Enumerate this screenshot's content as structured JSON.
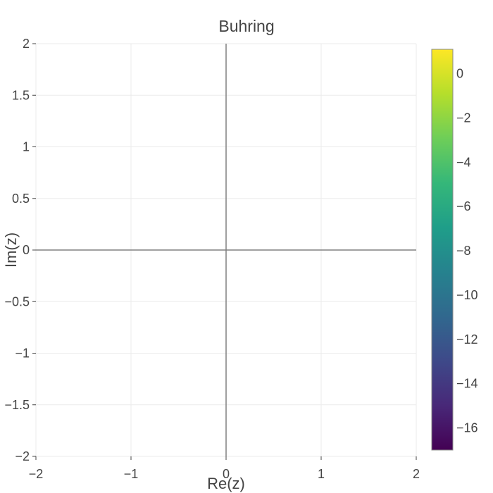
{
  "chart_data": {
    "type": "heatmap",
    "title": "Buhring",
    "xlabel": "Re(z)",
    "ylabel": "Im(z)",
    "xlim": [
      -2,
      2
    ],
    "ylim": [
      -2,
      2
    ],
    "x_ticks": [
      -2,
      -1,
      0,
      1,
      2
    ],
    "x_tick_labels": [
      "−2",
      "−1",
      "0",
      "1",
      "2"
    ],
    "y_ticks": [
      -2,
      -1.5,
      -1,
      -0.5,
      0,
      0.5,
      1,
      1.5,
      2
    ],
    "y_tick_labels": [
      "−2",
      "−1.5",
      "−1",
      "−0.5",
      "0",
      "0.5",
      "1",
      "1.5",
      "2"
    ],
    "grid": true,
    "zero_lines": true,
    "values": [],
    "colorbar": {
      "colorscale": "viridis",
      "range": [
        -17,
        1.1
      ],
      "ticks": [
        0,
        -2,
        -4,
        -6,
        -8,
        -10,
        -12,
        -14,
        -16
      ],
      "tick_labels": [
        "0",
        "−2",
        "−4",
        "−6",
        "−8",
        "−10",
        "−12",
        "−14",
        "−16"
      ],
      "position": "right"
    }
  },
  "colors": {
    "grid": "#ebebeb",
    "zero_line": "#808080",
    "text": "#444444",
    "colorbar_border": "#888888",
    "viridis": [
      "#440154",
      "#482878",
      "#3e4989",
      "#31688e",
      "#26828e",
      "#1f9e89",
      "#35b779",
      "#6ece58",
      "#b5de2b",
      "#fde725"
    ]
  }
}
